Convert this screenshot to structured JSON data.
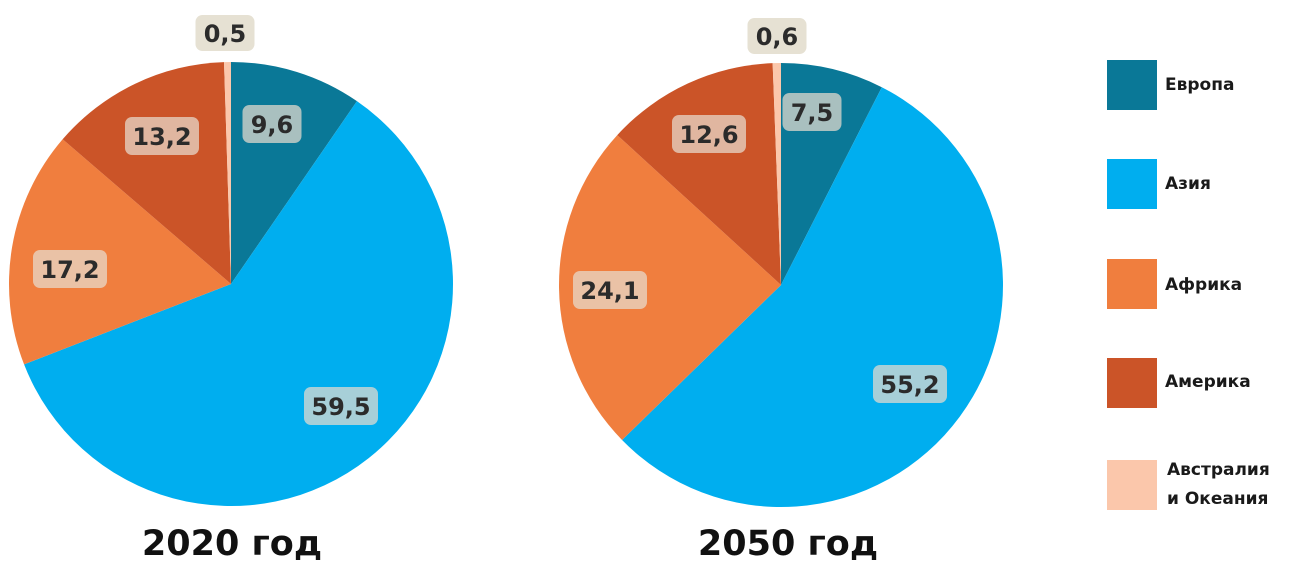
{
  "chart_data": [
    {
      "type": "pie",
      "title": "2020 год",
      "categories": [
        "Европа",
        "Азия",
        "Африка",
        "Америка",
        "Австралия и Океания"
      ],
      "values": [
        9.6,
        59.5,
        17.2,
        13.2,
        0.5
      ],
      "labels": [
        "9,6",
        "59,5",
        "17,2",
        "13,2",
        "0,5"
      ]
    },
    {
      "type": "pie",
      "title": "2050 год",
      "categories": [
        "Европа",
        "Азия",
        "Африка",
        "Америка",
        "Австралия и Океания"
      ],
      "values": [
        7.5,
        55.2,
        24.1,
        12.6,
        0.6
      ],
      "labels": [
        "7,5",
        "55,2",
        "24,1",
        "12,6",
        "0,6"
      ]
    }
  ],
  "legend": {
    "placement": "right",
    "items": [
      {
        "label": "Европа",
        "color": "#0a7897"
      },
      {
        "label": "Азия",
        "color": "#00aeef"
      },
      {
        "label": "Африка",
        "color": "#f07e3e"
      },
      {
        "label": "Америка",
        "color": "#cb5428"
      },
      {
        "label": "Австралия",
        "label2": "и Океания",
        "color": "#fbc7ab"
      }
    ]
  }
}
